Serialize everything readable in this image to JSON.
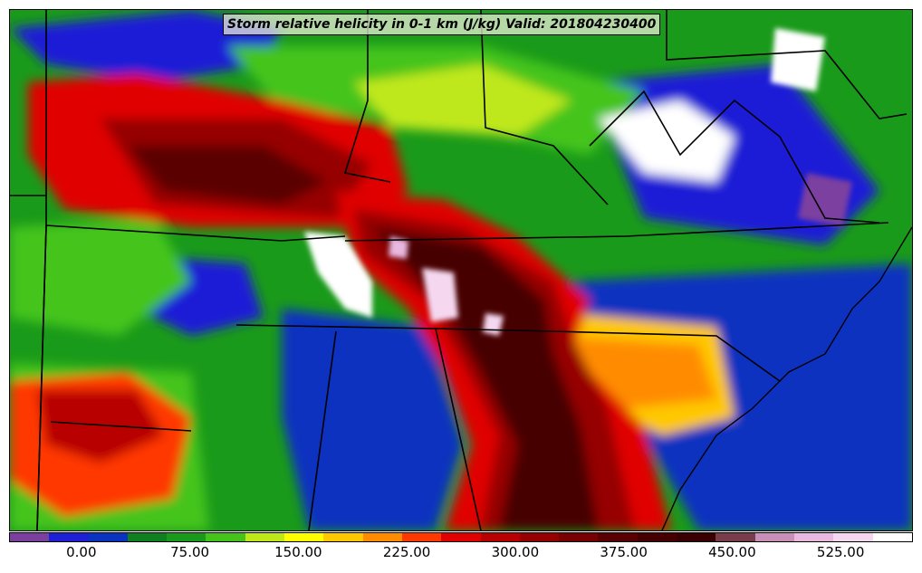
{
  "title": "Storm relative helicity in 0-1 km (J/kg) Valid: 201804230400",
  "colorbar": {
    "colors": [
      "#7b3fa0",
      "#1f1fd6",
      "#0a33c0",
      "#0f7f20",
      "#1a9a1a",
      "#44c41a",
      "#bfe81a",
      "#ffff00",
      "#ffc800",
      "#ff8c00",
      "#ff3800",
      "#e00000",
      "#b80000",
      "#960000",
      "#780000",
      "#5a0000",
      "#460000",
      "#380000",
      "#783c4a",
      "#c890b8",
      "#e8b8e0",
      "#f5d8f0",
      "#ffffff"
    ],
    "ticks": [
      "0.00",
      "75.00",
      "150.00",
      "225.00",
      "300.00",
      "375.00",
      "450.00",
      "525.00"
    ],
    "tick_values": [
      0,
      75,
      150,
      225,
      300,
      375,
      450,
      525
    ],
    "min": -50,
    "max": 575
  }
}
